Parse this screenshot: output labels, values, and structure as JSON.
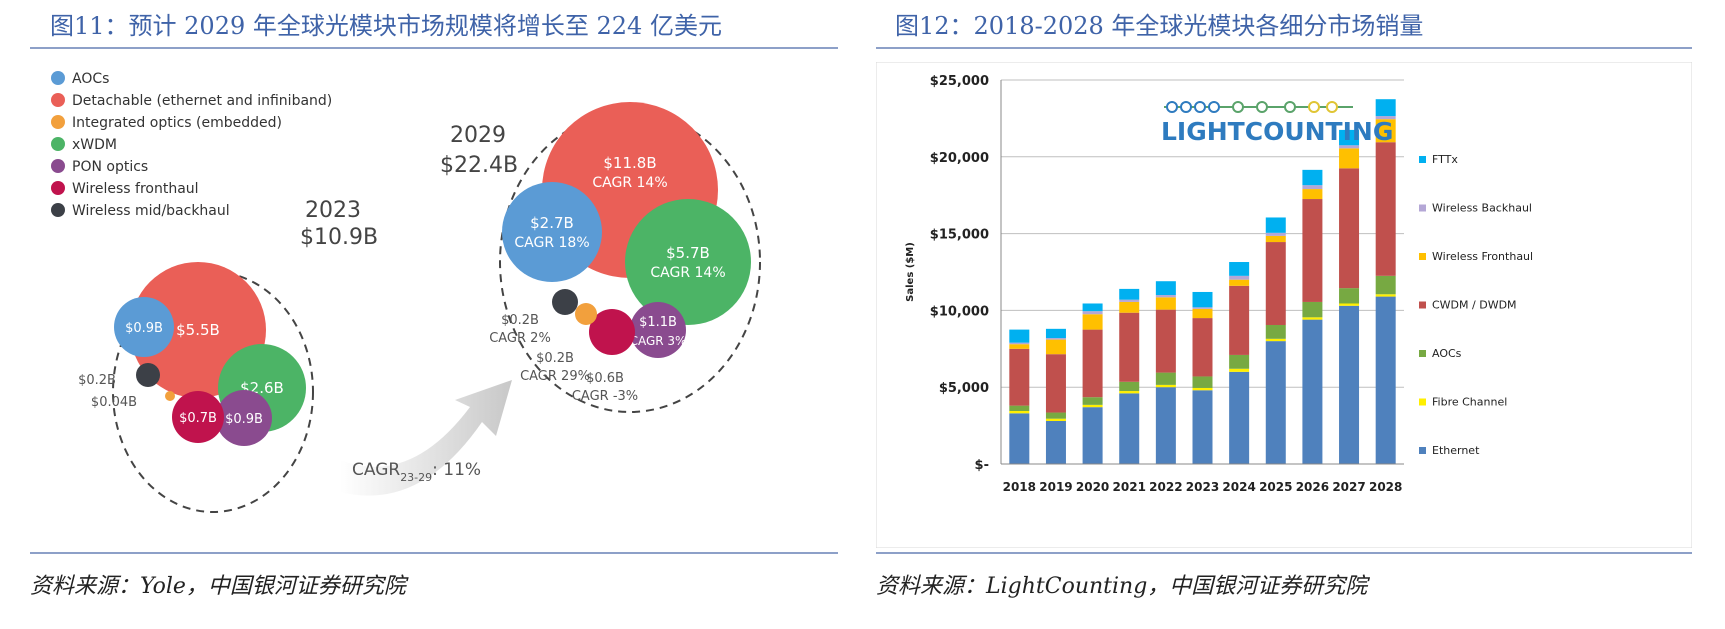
{
  "left": {
    "title": "图11：预计 2029 年全球光模块市场规模将增长至 224 亿美元",
    "source": "资料来源：Yole，中国银河证券研究院"
  },
  "right": {
    "title": "图12：2018-2028 年全球光模块各细分市场销量",
    "source": "资料来源：LightCounting，中国银河证券研究院",
    "logo_text": "LIGHTCOUNTING"
  },
  "chart_data": [
    {
      "type": "bubble",
      "legend": [
        {
          "name": "AOCs",
          "color": "#5b9bd5"
        },
        {
          "name": "Detachable (ethernet and infiniband)",
          "color": "#ea5f57"
        },
        {
          "name": "Integrated optics (embedded)",
          "color": "#f2a03d"
        },
        {
          "name": "xWDM",
          "color": "#4cb466"
        },
        {
          "name": "PON optics",
          "color": "#8a4b8f"
        },
        {
          "name": "Wireless fronthaul",
          "color": "#c0134d"
        },
        {
          "name": "Wireless mid/backhaul",
          "color": "#3c4047"
        }
      ],
      "groups": [
        {
          "year": "2023",
          "total": "$10.9B",
          "items": [
            {
              "segment": "Detachable (ethernet and infiniband)",
              "value": 5.5,
              "label": "$5.5B"
            },
            {
              "segment": "xWDM",
              "value": 2.6,
              "label": "$2.6B"
            },
            {
              "segment": "AOCs",
              "value": 0.9,
              "label": "$0.9B"
            },
            {
              "segment": "PON optics",
              "value": 0.9,
              "label": "$0.9B"
            },
            {
              "segment": "Wireless fronthaul",
              "value": 0.7,
              "label": "$0.7B"
            },
            {
              "segment": "Wireless mid/backhaul",
              "value": 0.2,
              "label": "$0.2B"
            },
            {
              "segment": "Integrated optics (embedded)",
              "value": 0.04,
              "label": "$0.04B"
            }
          ]
        },
        {
          "year": "2029",
          "total": "$22.4B",
          "items": [
            {
              "segment": "Detachable (ethernet and infiniband)",
              "value": 11.8,
              "label": "$11.8B",
              "cagr": "CAGR 14%"
            },
            {
              "segment": "xWDM",
              "value": 5.7,
              "label": "$5.7B",
              "cagr": "CAGR 14%"
            },
            {
              "segment": "AOCs",
              "value": 2.7,
              "label": "$2.7B",
              "cagr": "CAGR 18%"
            },
            {
              "segment": "PON optics",
              "value": 1.1,
              "label": "$1.1B",
              "cagr": "CAGR 3%"
            },
            {
              "segment": "Wireless fronthaul",
              "value": 0.6,
              "label": "$0.6B",
              "cagr": "CAGR -3%"
            },
            {
              "segment": "Wireless mid/backhaul",
              "value": 0.2,
              "label": "$0.2B",
              "cagr": "CAGR 2%"
            },
            {
              "segment": "Integrated optics (embedded)",
              "value": 0.2,
              "label": "$0.2B",
              "cagr": "CAGR 29%"
            }
          ]
        }
      ],
      "arrow_label_main": "CAGR",
      "arrow_label_sub": "23-29",
      "arrow_label_value": ": 11%"
    },
    {
      "type": "bar",
      "stacked": true,
      "categories": [
        "2018",
        "2019",
        "2020",
        "2021",
        "2022",
        "2023",
        "2024",
        "2025",
        "2026",
        "2027",
        "2028"
      ],
      "ylabel": "Sales ($M)",
      "ylim": [
        0,
        25000
      ],
      "yticks": [
        {
          "value": 0,
          "label": "$-"
        },
        {
          "value": 5000,
          "label": "$5,000"
        },
        {
          "value": 10000,
          "label": "$10,000"
        },
        {
          "value": 15000,
          "label": "$15,000"
        },
        {
          "value": 20000,
          "label": "$20,000"
        },
        {
          "value": 25000,
          "label": "$25,000"
        }
      ],
      "grid": true,
      "legend_position": "right",
      "series": [
        {
          "name": "Ethernet",
          "color": "#4f81bd",
          "values": [
            3300,
            2800,
            3700,
            4600,
            5000,
            4800,
            6000,
            8000,
            9400,
            10300,
            10900
          ]
        },
        {
          "name": "Fibre Channel",
          "color": "#ffef00",
          "values": [
            150,
            150,
            150,
            150,
            150,
            150,
            200,
            150,
            150,
            150,
            150
          ]
        },
        {
          "name": "AOCs",
          "color": "#77a942",
          "values": [
            350,
            400,
            500,
            600,
            800,
            750,
            900,
            900,
            1000,
            1000,
            1200
          ]
        },
        {
          "name": "CWDM / DWDM",
          "color": "#c0504d",
          "values": [
            3700,
            3800,
            4400,
            4500,
            4100,
            3800,
            4500,
            5400,
            6700,
            7800,
            8700
          ]
        },
        {
          "name": "Wireless Fronthaul",
          "color": "#ffc000",
          "values": [
            300,
            950,
            1000,
            700,
            800,
            600,
            400,
            400,
            650,
            1300,
            1500
          ]
        },
        {
          "name": "Wireless Backhaul",
          "color": "#b4a7d6",
          "values": [
            100,
            100,
            200,
            150,
            150,
            100,
            250,
            200,
            250,
            200,
            200
          ]
        },
        {
          "name": "FTTx",
          "color": "#00b0f0",
          "values": [
            850,
            600,
            500,
            700,
            900,
            1000,
            900,
            1000,
            1000,
            1000,
            1100
          ]
        }
      ]
    }
  ]
}
